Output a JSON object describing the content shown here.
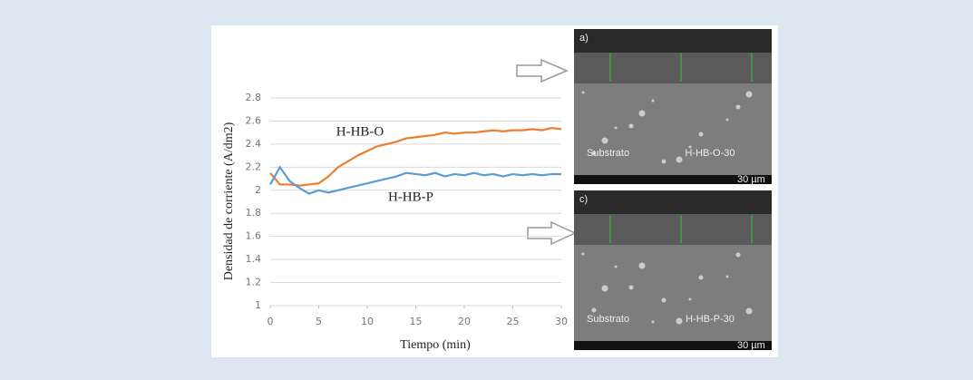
{
  "chart_data": {
    "type": "line",
    "xlabel": "Tiempo (min)",
    "ylabel": "Densidad de corriente (A/dm2)",
    "x": [
      0,
      1,
      2,
      3,
      4,
      5,
      6,
      7,
      8,
      9,
      10,
      11,
      12,
      13,
      14,
      15,
      16,
      17,
      18,
      19,
      20,
      21,
      22,
      23,
      24,
      25,
      26,
      27,
      28,
      29,
      30
    ],
    "series": [
      {
        "name": "H-HB-O",
        "color": "#ed7d31",
        "values": [
          2.15,
          2.05,
          2.05,
          2.04,
          2.05,
          2.06,
          2.12,
          2.2,
          2.25,
          2.3,
          2.34,
          2.38,
          2.4,
          2.42,
          2.45,
          2.46,
          2.47,
          2.48,
          2.5,
          2.49,
          2.5,
          2.5,
          2.51,
          2.52,
          2.51,
          2.52,
          2.52,
          2.53,
          2.52,
          2.54,
          2.53
        ]
      },
      {
        "name": "H-HB-P",
        "color": "#5b9bd5",
        "values": [
          2.05,
          2.2,
          2.08,
          2.02,
          1.97,
          2.0,
          1.98,
          2.0,
          2.02,
          2.04,
          2.06,
          2.08,
          2.1,
          2.12,
          2.15,
          2.14,
          2.13,
          2.15,
          2.12,
          2.14,
          2.13,
          2.15,
          2.13,
          2.14,
          2.12,
          2.14,
          2.13,
          2.14,
          2.13,
          2.14,
          2.14
        ]
      }
    ],
    "xlim": [
      0,
      30
    ],
    "xticks": [
      0,
      5,
      10,
      15,
      20,
      25,
      30
    ],
    "ylim": [
      1,
      2.8
    ],
    "yticks": [
      1,
      1.2,
      1.4,
      1.6,
      1.8,
      2,
      2.2,
      2.4,
      2.6,
      2.8
    ],
    "grid": true
  },
  "images": [
    {
      "label": "a)",
      "substrate": "Substrato",
      "sample": "H-HB-O-30",
      "scale": "30 µm"
    },
    {
      "label": "c)",
      "substrate": "Substrato",
      "sample": "H-HB-P-30",
      "scale": "30 µm"
    }
  ]
}
